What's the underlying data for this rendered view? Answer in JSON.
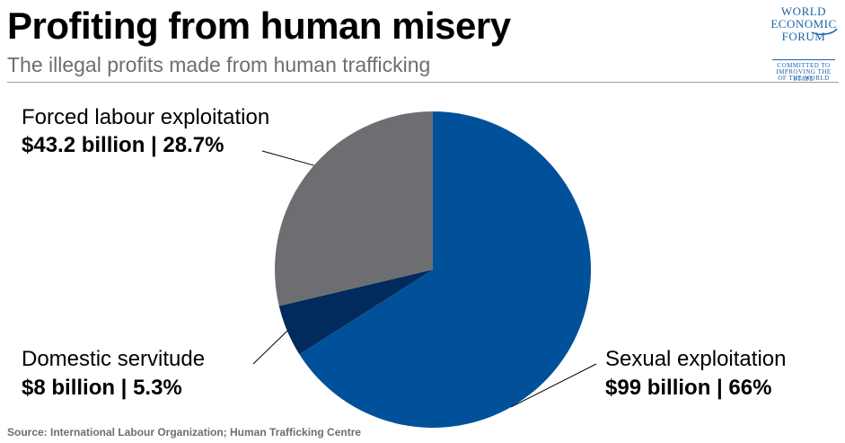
{
  "header": {
    "title": "Profiting from human misery",
    "subtitle": "The illegal profits made from human trafficking"
  },
  "logo": {
    "line1": "WORLD",
    "line2": "ECONOMIC",
    "line3": "FORUM",
    "tagline1": "COMMITTED TO",
    "tagline2": "IMPROVING THE STATE",
    "tagline3": "OF THE WORLD",
    "color": "#1b63a8"
  },
  "chart_data": {
    "type": "pie",
    "slices": [
      {
        "label": "Sexual exploitation",
        "value_text": "$99 billion | 66%",
        "value": 99,
        "percent": 66,
        "color": "#00519a"
      },
      {
        "label": "Domestic servitude",
        "value_text": "$8 billion | 5.3%",
        "value": 8,
        "percent": 5.3,
        "color": "#002b5c"
      },
      {
        "label": "Forced labour exploitation",
        "value_text": "$43.2 billion | 28.7%",
        "value": 43.2,
        "percent": 28.7,
        "color": "#6d6e71"
      }
    ]
  },
  "footer": {
    "source": "Source: International Labour Organization; Human Trafficking Centre"
  }
}
